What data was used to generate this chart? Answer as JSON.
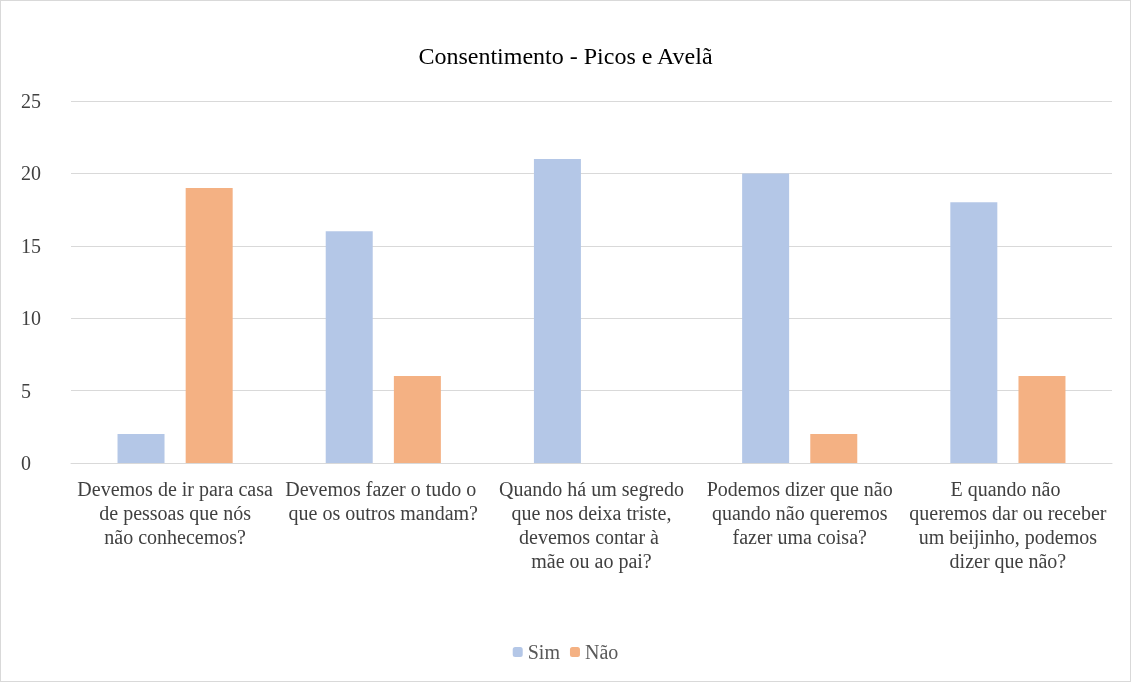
{
  "chart_data": {
    "type": "bar",
    "title": "Consentimento - Picos e Avelã",
    "categories": [
      "Devemos de ir para casa de pessoas que nós não conhecemos?",
      "Devemos fazer o tudo o que os outros mandam?",
      "Quando há um segredo que nos deixa triste, devemos contar à mãe ou ao pai?",
      "Podemos dizer que não quando não queremos fazer uma coisa?",
      "E quando não queremos dar ou receber um beijinho, podemos dizer que não?"
    ],
    "series": [
      {
        "name": "Sim",
        "color": "#b4c7e7",
        "values": [
          2,
          16,
          21,
          20,
          18
        ]
      },
      {
        "name": "Não",
        "color": "#f4b183",
        "values": [
          19,
          6,
          0,
          2,
          6
        ]
      }
    ],
    "ylim": [
      0,
      25
    ],
    "yticks": [
      0,
      5,
      10,
      15,
      20,
      25
    ],
    "grid": "y",
    "legend": "bottom"
  }
}
